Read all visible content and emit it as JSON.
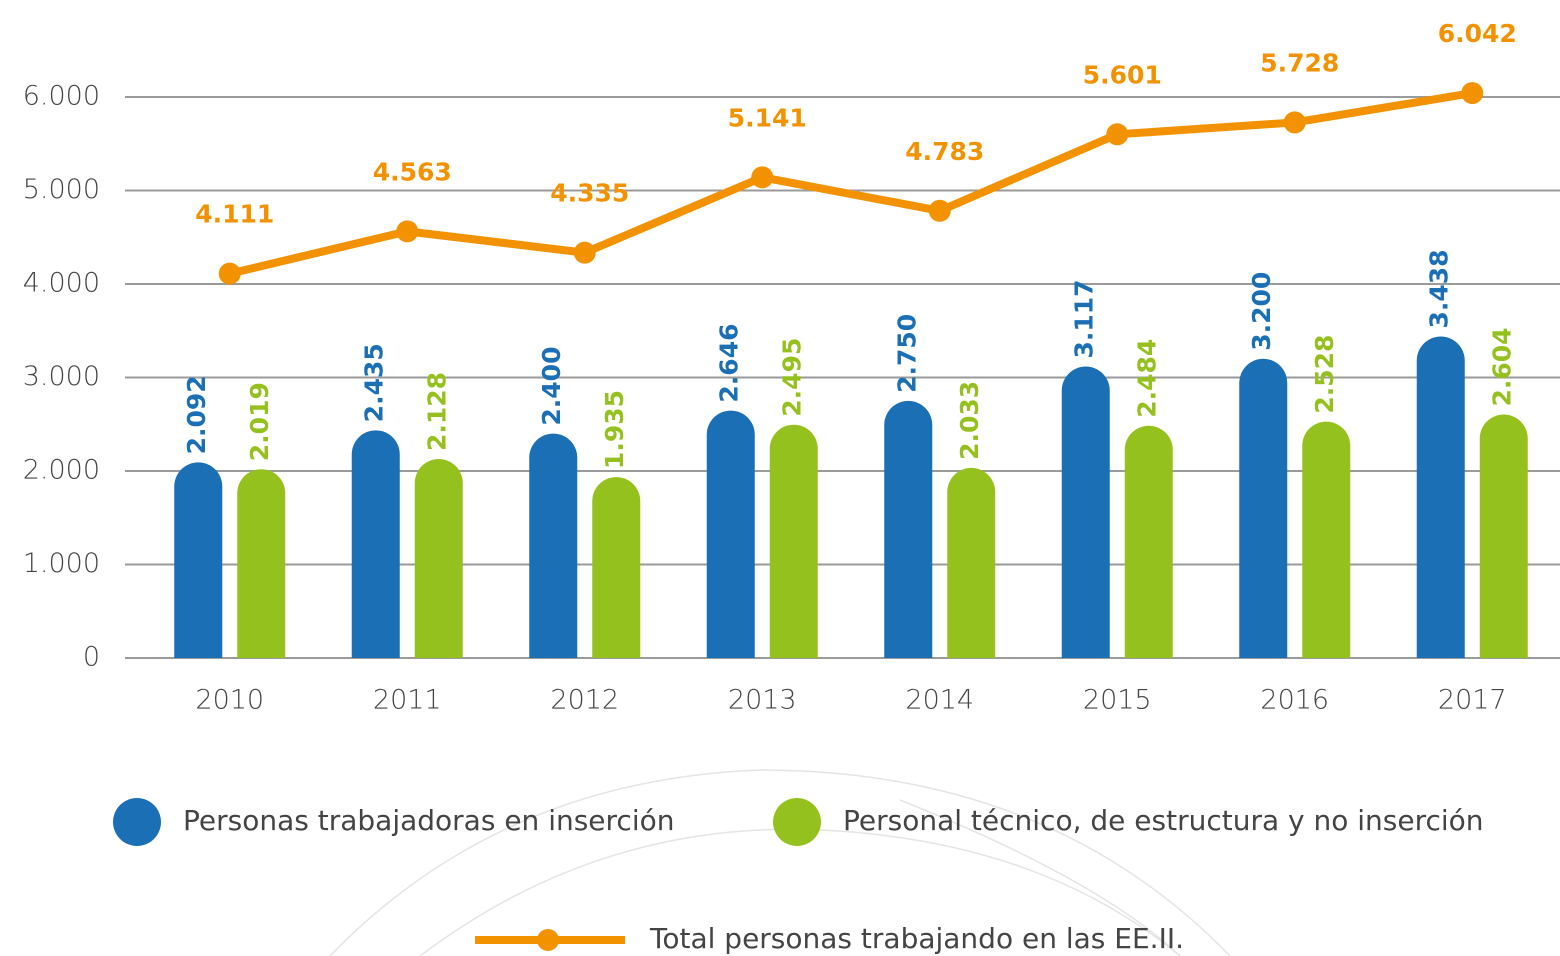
{
  "chart_data": {
    "type": "bar",
    "categories": [
      "2010",
      "2011",
      "2012",
      "2013",
      "2014",
      "2015",
      "2016",
      "2017"
    ],
    "series": [
      {
        "name": "Personas trabajadoras en inserción",
        "color": "#1a6fb5",
        "type": "bar",
        "values": [
          2092,
          2435,
          2400,
          2646,
          2750,
          3117,
          3200,
          3438
        ],
        "value_labels": [
          "2.092",
          "2.435",
          "2.400",
          "2.646",
          "2.750",
          "3.117",
          "3.200",
          "3.438"
        ]
      },
      {
        "name": "Personal técnico, de estructura y no inserción",
        "color": "#95c11f",
        "type": "bar",
        "values": [
          2019,
          2128,
          1935,
          2495,
          2033,
          2484,
          2528,
          2604
        ],
        "value_labels": [
          "2.019",
          "2.128",
          "1.935",
          "2.495",
          "2.033",
          "2.484",
          "2.528",
          "2.604"
        ]
      },
      {
        "name": "Total personas trabajando en las EE.II.",
        "color": "#f39200",
        "type": "line",
        "values": [
          4111,
          4563,
          4335,
          5141,
          4783,
          5601,
          5728,
          6042
        ],
        "value_labels": [
          "4.111",
          "4.563",
          "4.335",
          "5.141",
          "4.783",
          "5.601",
          "5.728",
          "6.042"
        ]
      }
    ],
    "ylim": [
      0,
      6000
    ],
    "yticks": [
      0,
      {
        "value": 1000,
        "label": "1.000"
      },
      {
        "value": 2000,
        "label": "2.000"
      },
      {
        "value": 3000,
        "label": "3.000"
      },
      {
        "value": 4000,
        "label": "4.000"
      },
      {
        "value": 5000,
        "label": "5.000"
      },
      {
        "value": 6000,
        "label": "6.000"
      }
    ],
    "grid": true,
    "legend": "bottom"
  }
}
